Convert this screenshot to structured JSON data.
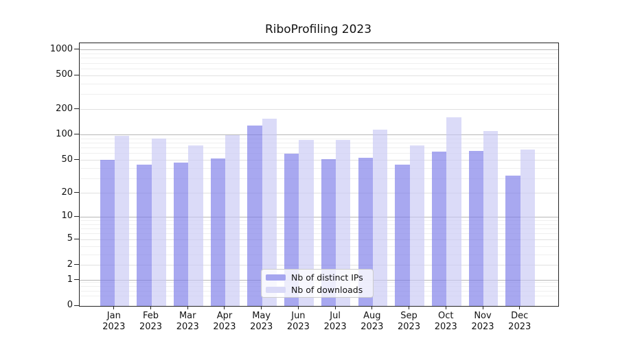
{
  "chart_data": {
    "type": "bar",
    "title": "RiboProfiling 2023",
    "x": {
      "months": [
        "Jan",
        "Feb",
        "Mar",
        "Apr",
        "May",
        "Jun",
        "Jul",
        "Aug",
        "Sep",
        "Oct",
        "Nov",
        "Dec"
      ],
      "year": "2023"
    },
    "series": [
      {
        "name": "Nb of distinct IPs",
        "color": "rgba(123,123,232,0.66)",
        "legend_color": "#a5a5ef",
        "values": [
          51,
          44,
          47,
          53,
          130,
          60,
          52,
          54,
          44,
          64,
          65,
          33
        ]
      },
      {
        "name": "Nb of downloads",
        "color": "rgba(201,201,244,0.66)",
        "legend_color": "#d9d9f7",
        "values": [
          98,
          90,
          75,
          99,
          156,
          88,
          88,
          116,
          75,
          163,
          112,
          67
        ]
      }
    ],
    "y_axis": {
      "scale": "log1p",
      "max": 1200,
      "tick_values": [
        0,
        1,
        2,
        5,
        10,
        20,
        50,
        100,
        200,
        500,
        1000
      ],
      "tick_labels": [
        "0",
        "1",
        "2",
        "5",
        "10",
        "20",
        "50",
        "100",
        "200",
        "500",
        "1000"
      ],
      "decade_lines": [
        1,
        10,
        100,
        1000
      ],
      "minor_lines": [
        0.3,
        0.5,
        0.7,
        0.9,
        3,
        4,
        6,
        7,
        8,
        9,
        30,
        40,
        60,
        70,
        80,
        90,
        300,
        400,
        600,
        700,
        800,
        900
      ]
    },
    "grid": true,
    "legend_position": "inside-bottom-center",
    "style": {
      "decade_gridline": "#b6b6b6",
      "major_gridline": "#e0e0e0",
      "minor_gridline": "#efefef",
      "spine": "#222222",
      "text": "#111111",
      "legend_border": "#cccccc",
      "legend_background": "rgba(255,255,255,0.8)"
    }
  }
}
